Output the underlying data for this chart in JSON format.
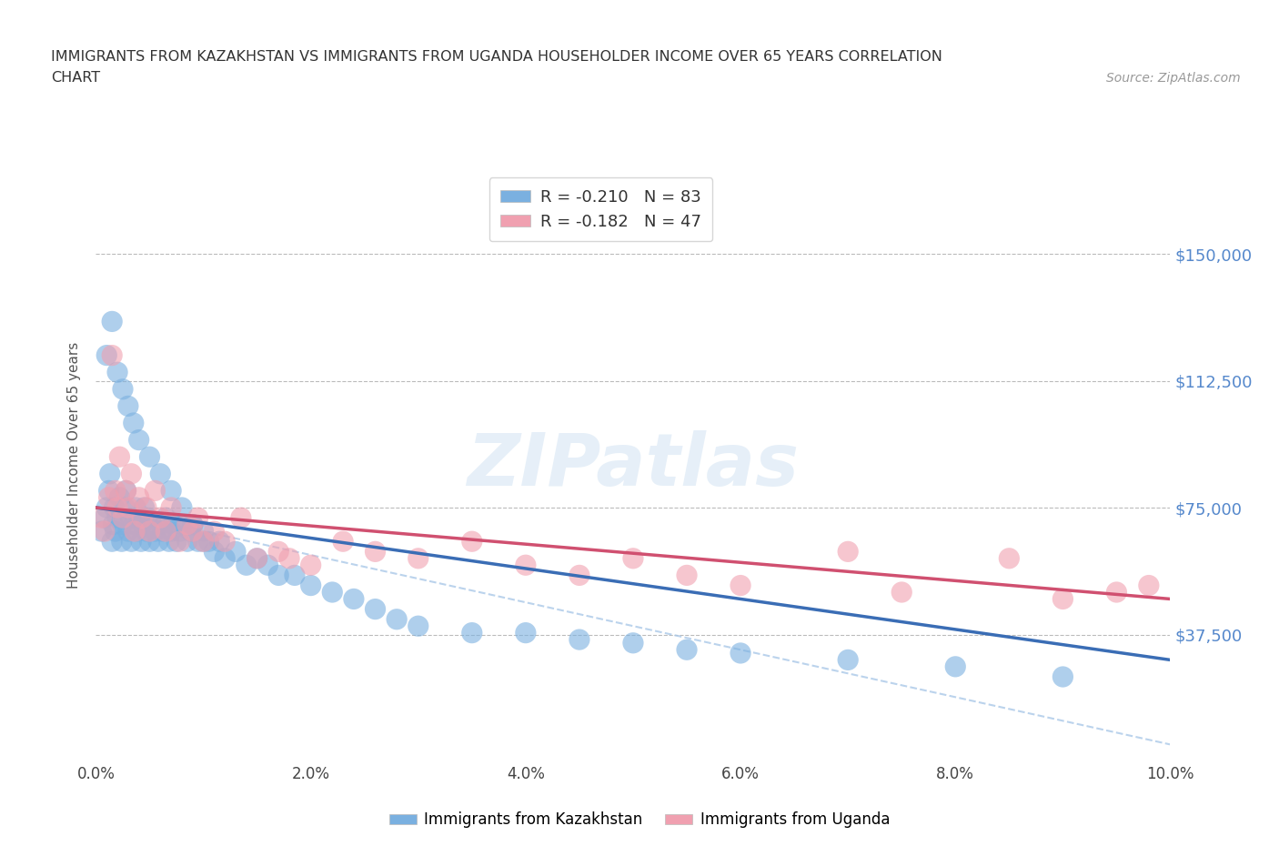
{
  "title_line1": "IMMIGRANTS FROM KAZAKHSTAN VS IMMIGRANTS FROM UGANDA HOUSEHOLDER INCOME OVER 65 YEARS CORRELATION",
  "title_line2": "CHART",
  "source_text": "Source: ZipAtlas.com",
  "ylabel": "Householder Income Over 65 years",
  "x_min": 0.0,
  "x_max": 10.0,
  "y_min": 0,
  "y_max": 175000,
  "y_ticks": [
    0,
    37500,
    75000,
    112500,
    150000
  ],
  "y_tick_labels": [
    "",
    "$37,500",
    "$75,000",
    "$112,500",
    "$150,000"
  ],
  "x_ticks": [
    0.0,
    2.0,
    4.0,
    6.0,
    8.0,
    10.0
  ],
  "x_tick_labels": [
    "0.0%",
    "2.0%",
    "4.0%",
    "6.0%",
    "8.0%",
    "10.0%"
  ],
  "kaz_color": "#7ab0e0",
  "uga_color": "#f0a0b0",
  "kaz_line_color": "#3a6db5",
  "uga_line_color": "#d05070",
  "dashed_line_color": "#aac8e8",
  "legend_kaz_label": "R = -0.210   N = 83",
  "legend_uga_label": "R = -0.182   N = 47",
  "watermark_text": "ZIPatlas",
  "axis_label_color": "#5588cc",
  "background_color": "#ffffff",
  "kaz_x": [
    0.05,
    0.08,
    0.1,
    0.12,
    0.13,
    0.15,
    0.16,
    0.17,
    0.18,
    0.2,
    0.22,
    0.24,
    0.25,
    0.27,
    0.28,
    0.3,
    0.32,
    0.33,
    0.35,
    0.37,
    0.38,
    0.4,
    0.42,
    0.43,
    0.45,
    0.47,
    0.48,
    0.5,
    0.52,
    0.55,
    0.58,
    0.6,
    0.62,
    0.65,
    0.68,
    0.7,
    0.72,
    0.75,
    0.78,
    0.8,
    0.85,
    0.88,
    0.9,
    0.95,
    1.0,
    1.05,
    1.1,
    1.15,
    1.2,
    1.3,
    1.4,
    1.5,
    1.6,
    1.7,
    1.85,
    2.0,
    2.2,
    2.4,
    2.6,
    2.8,
    3.0,
    3.5,
    4.0,
    4.5,
    5.0,
    5.5,
    6.0,
    7.0,
    8.0,
    9.0,
    0.1,
    0.15,
    0.2,
    0.25,
    0.3,
    0.35,
    0.4,
    0.5,
    0.6,
    0.7,
    0.8,
    0.9,
    1.0
  ],
  "kaz_y": [
    68000,
    72000,
    75000,
    80000,
    85000,
    65000,
    70000,
    75000,
    68000,
    72000,
    78000,
    65000,
    70000,
    75000,
    80000,
    68000,
    72000,
    65000,
    70000,
    75000,
    68000,
    72000,
    65000,
    70000,
    75000,
    68000,
    72000,
    65000,
    70000,
    68000,
    65000,
    70000,
    68000,
    72000,
    65000,
    68000,
    70000,
    65000,
    68000,
    70000,
    65000,
    68000,
    70000,
    65000,
    68000,
    65000,
    62000,
    65000,
    60000,
    62000,
    58000,
    60000,
    58000,
    55000,
    55000,
    52000,
    50000,
    48000,
    45000,
    42000,
    40000,
    38000,
    38000,
    36000,
    35000,
    33000,
    32000,
    30000,
    28000,
    25000,
    120000,
    130000,
    115000,
    110000,
    105000,
    100000,
    95000,
    90000,
    85000,
    80000,
    75000,
    70000,
    65000
  ],
  "uga_x": [
    0.05,
    0.08,
    0.12,
    0.15,
    0.18,
    0.2,
    0.22,
    0.25,
    0.28,
    0.3,
    0.33,
    0.36,
    0.4,
    0.43,
    0.47,
    0.5,
    0.55,
    0.6,
    0.65,
    0.7,
    0.78,
    0.85,
    0.9,
    0.95,
    1.0,
    1.1,
    1.2,
    1.35,
    1.5,
    1.7,
    2.0,
    2.3,
    2.6,
    3.0,
    3.5,
    4.0,
    4.5,
    5.0,
    5.5,
    6.0,
    7.0,
    7.5,
    8.5,
    9.0,
    9.5,
    9.8,
    1.8
  ],
  "uga_y": [
    72000,
    68000,
    78000,
    120000,
    80000,
    75000,
    90000,
    72000,
    80000,
    75000,
    85000,
    68000,
    78000,
    72000,
    75000,
    68000,
    80000,
    72000,
    68000,
    75000,
    65000,
    70000,
    68000,
    72000,
    65000,
    68000,
    65000,
    72000,
    60000,
    62000,
    58000,
    65000,
    62000,
    60000,
    65000,
    58000,
    55000,
    60000,
    55000,
    52000,
    62000,
    50000,
    60000,
    48000,
    50000,
    52000,
    60000
  ]
}
